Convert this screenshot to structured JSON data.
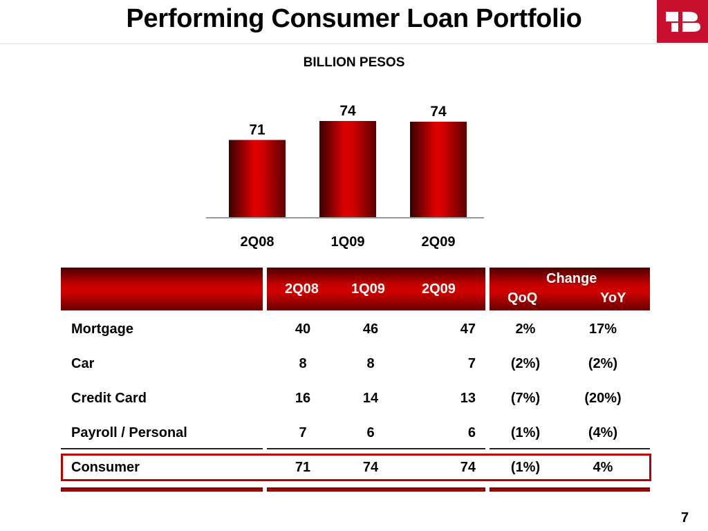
{
  "slide": {
    "title": "Performing Consumer Loan Portfolio",
    "subtitle": "BILLION PESOS",
    "page_number": "7",
    "accent_color": "#c00000",
    "logo_icon": "banorte-logo-icon"
  },
  "chart_data": {
    "type": "bar",
    "title": "",
    "xlabel": "",
    "ylabel": "",
    "categories": [
      "2Q08",
      "1Q09",
      "2Q09"
    ],
    "values": [
      71,
      74,
      74
    ],
    "value_labels": [
      "71",
      "74",
      "74"
    ],
    "ylim": [
      0,
      80
    ],
    "grid": false,
    "legend": "none"
  },
  "table": {
    "headers": {
      "col1": "2Q08",
      "col2": "1Q09",
      "col3": "2Q09",
      "change": "Change",
      "qoq": "QoQ",
      "yoy": "YoY"
    },
    "rows": [
      {
        "label": "Mortgage",
        "v1": "40",
        "v2": "46",
        "v3": "47",
        "qoq": "2%",
        "yoy": "17%"
      },
      {
        "label": "Car",
        "v1": "8",
        "v2": "8",
        "v3": "7",
        "qoq": "(2%)",
        "yoy": "(2%)"
      },
      {
        "label": "Credit Card",
        "v1": "16",
        "v2": "14",
        "v3": "13",
        "qoq": "(7%)",
        "yoy": "(20%)"
      },
      {
        "label": "Payroll / Personal",
        "v1": "7",
        "v2": "6",
        "v3": "6",
        "qoq": "(1%)",
        "yoy": "(4%)"
      }
    ],
    "total": {
      "label": "Consumer",
      "v1": "71",
      "v2": "74",
      "v3": "74",
      "qoq": "(1%)",
      "yoy": "4%"
    }
  }
}
